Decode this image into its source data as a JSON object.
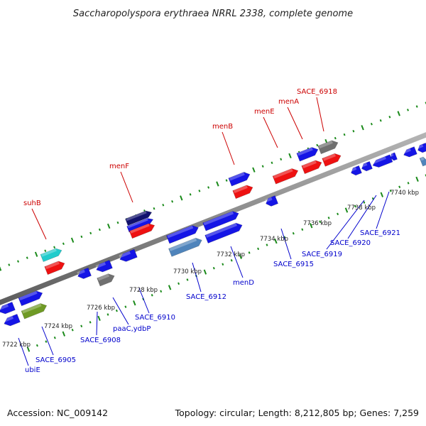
{
  "title": "Saccharopolyspora erythraea NRRL 2338, complete genome",
  "footer": {
    "accession": "Accession: NC_009142",
    "summary": "Topology: circular; Length: 8,212,805 bp; Genes: 7,259"
  },
  "colors": {
    "background": "#ffffff",
    "backbone": "#8c8c8c",
    "tick_marks": "#1a8a1a",
    "highlighted_gene_label": "#cc0000",
    "gene_label": "#0000cc",
    "gene_blue": "#1515e6",
    "gene_red": "#ee1111",
    "gene_cyan": "#22cccc",
    "gene_gray": "#707070",
    "gene_olive": "#6f9a25",
    "gene_steel": "#4f84bb",
    "gene_navy": "#11116e"
  },
  "scale_labels": [
    "7722 kbp",
    "7724 kbp",
    "7726 kbp",
    "7728 kbp",
    "7730 kbp",
    "7732 kbp",
    "7734 kbp",
    "7736 kbp",
    "7738 kbp",
    "7740 kbp"
  ],
  "upper_labels": [
    {
      "text": "suhB",
      "color": "#cc0000"
    },
    {
      "text": "menF",
      "color": "#cc0000"
    },
    {
      "text": "menB",
      "color": "#cc0000"
    },
    {
      "text": "menE",
      "color": "#cc0000"
    },
    {
      "text": "menA",
      "color": "#cc0000"
    },
    {
      "text": "SACE_6918",
      "color": "#cc0000"
    }
  ],
  "lower_labels": [
    {
      "text": "ubiE",
      "color": "#0000cc"
    },
    {
      "text": "SACE_6905",
      "color": "#0000cc"
    },
    {
      "text": "SACE_6908",
      "color": "#0000cc"
    },
    {
      "text": "paaC,ydbP",
      "color": "#0000cc"
    },
    {
      "text": "SACE_6910",
      "color": "#0000cc"
    },
    {
      "text": "SACE_6912",
      "color": "#0000cc"
    },
    {
      "text": "menD",
      "color": "#0000cc"
    },
    {
      "text": "SACE_6915",
      "color": "#0000cc"
    },
    {
      "text": "SACE_6919",
      "color": "#0000cc"
    },
    {
      "text": "SACE_6920",
      "color": "#0000cc"
    },
    {
      "text": "SACE_6921",
      "color": "#0000cc"
    }
  ]
}
